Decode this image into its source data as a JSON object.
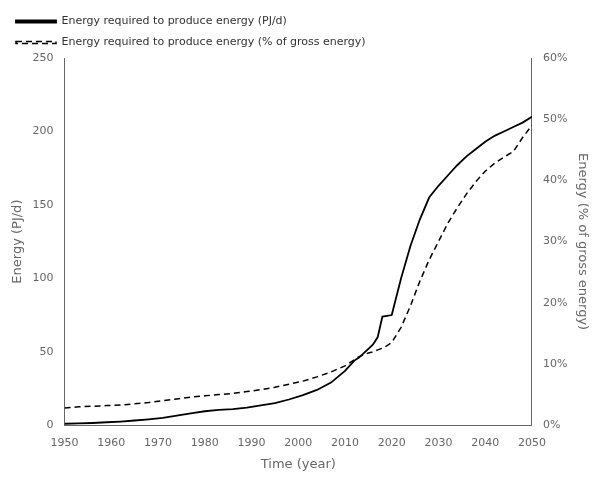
{
  "chart_data": {
    "type": "line",
    "xlabel": "Time (year)",
    "ylabel": "Energy (PJ/d)",
    "y2label": "Energy (% of gross energy)",
    "x": [
      1950,
      1953,
      1956,
      1959,
      1962,
      1965,
      1968,
      1971,
      1974,
      1977,
      1980,
      1983,
      1986,
      1989,
      1992,
      1995,
      1998,
      2001,
      2004,
      2007,
      2010,
      2012,
      2013,
      2015,
      2016,
      2017,
      2018,
      2019,
      2020,
      2022,
      2024,
      2026,
      2028,
      2030,
      2032,
      2034,
      2036,
      2038,
      2040,
      2042,
      2044,
      2046,
      2048,
      2050
    ],
    "series": [
      {
        "name": "Energy required to produce energy (PJ/d)",
        "color": "#000000",
        "line_style": "solid",
        "values": [
          1.0,
          1.2,
          1.5,
          2.0,
          2.5,
          3.2,
          4.0,
          5.0,
          6.5,
          8.0,
          9.5,
          10.5,
          11.0,
          12.0,
          13.5,
          15.0,
          17.5,
          20.5,
          24.0,
          29.0,
          37.0,
          44.0,
          46.0,
          52.0,
          55.0,
          60.0,
          74.0,
          74.5,
          75.0,
          100.0,
          122.0,
          140.0,
          155.0,
          163.0,
          170.0,
          177.0,
          183.0,
          188.0,
          193.0,
          197.0,
          200.0,
          203.0,
          206.0,
          210.0
        ]
      },
      {
        "name": "Energy required to produce energy (% of gross energy)",
        "color": "#000000",
        "line_style": "dashed",
        "axis": "y2",
        "values": [
          0.028,
          0.03,
          0.031,
          0.032,
          0.033,
          0.035,
          0.037,
          0.04,
          0.043,
          0.046,
          0.048,
          0.05,
          0.052,
          0.055,
          0.058,
          0.062,
          0.067,
          0.072,
          0.079,
          0.087,
          0.097,
          0.107,
          0.112,
          0.118,
          0.12,
          0.123,
          0.126,
          0.13,
          0.135,
          0.16,
          0.195,
          0.235,
          0.27,
          0.3,
          0.33,
          0.355,
          0.378,
          0.398,
          0.415,
          0.428,
          0.438,
          0.447,
          0.47,
          0.49
        ]
      }
    ],
    "xlim": [
      1950,
      2050
    ],
    "xticks": [
      1950,
      1960,
      1970,
      1980,
      1990,
      2000,
      2010,
      2020,
      2030,
      2040,
      2050
    ],
    "ylim": [
      0,
      250
    ],
    "yticks": [
      0,
      50,
      100,
      150,
      200,
      250
    ],
    "y2lim": [
      0,
      0.6
    ],
    "y2ticks": [
      {
        "value": 0.0,
        "label": "0%"
      },
      {
        "value": 0.1,
        "label": "10%"
      },
      {
        "value": 0.2,
        "label": "20%"
      },
      {
        "value": 0.3,
        "label": "30%"
      },
      {
        "value": 0.4,
        "label": "40%"
      },
      {
        "value": 0.5,
        "label": "50%"
      },
      {
        "value": 0.6,
        "label": "60%"
      }
    ],
    "grid": false,
    "legend": "upper left"
  }
}
